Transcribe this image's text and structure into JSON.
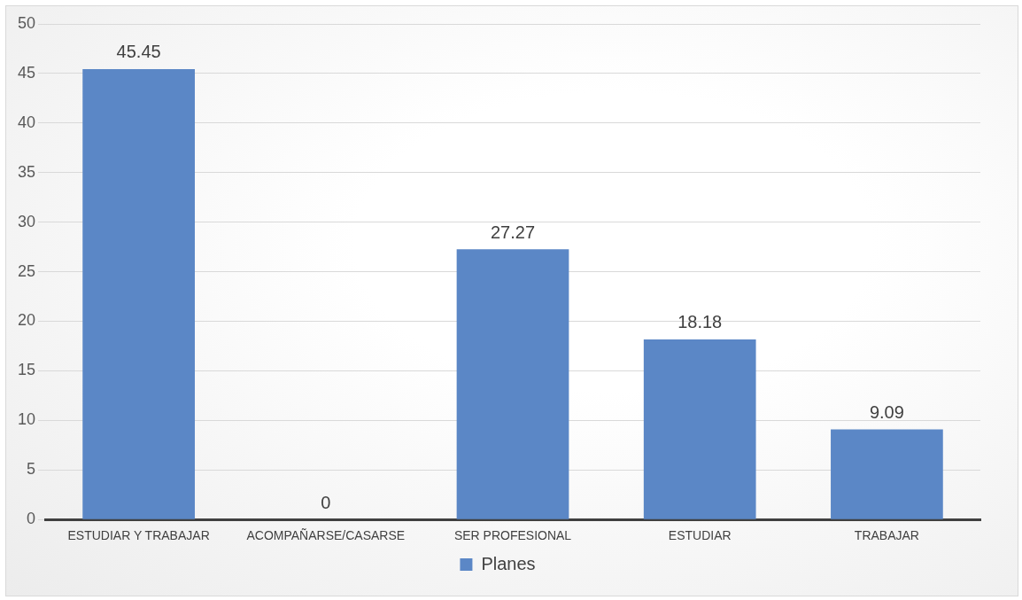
{
  "chart_data": {
    "type": "bar",
    "categories": [
      "ESTUDIAR Y TRABAJAR",
      "ACOMPAÑARSE/CASARSE",
      "SER PROFESIONAL",
      "ESTUDIAR",
      "TRABAJAR"
    ],
    "series": [
      {
        "name": "Planes",
        "color": "#5b87c6",
        "values": [
          45.45,
          0,
          27.27,
          18.18,
          9.09
        ]
      }
    ],
    "ylim": [
      0,
      50
    ],
    "yticks": [
      0,
      5,
      10,
      15,
      20,
      25,
      30,
      35,
      40,
      45,
      50
    ],
    "grid": "y",
    "legend": "bottom",
    "data_labels": true
  }
}
